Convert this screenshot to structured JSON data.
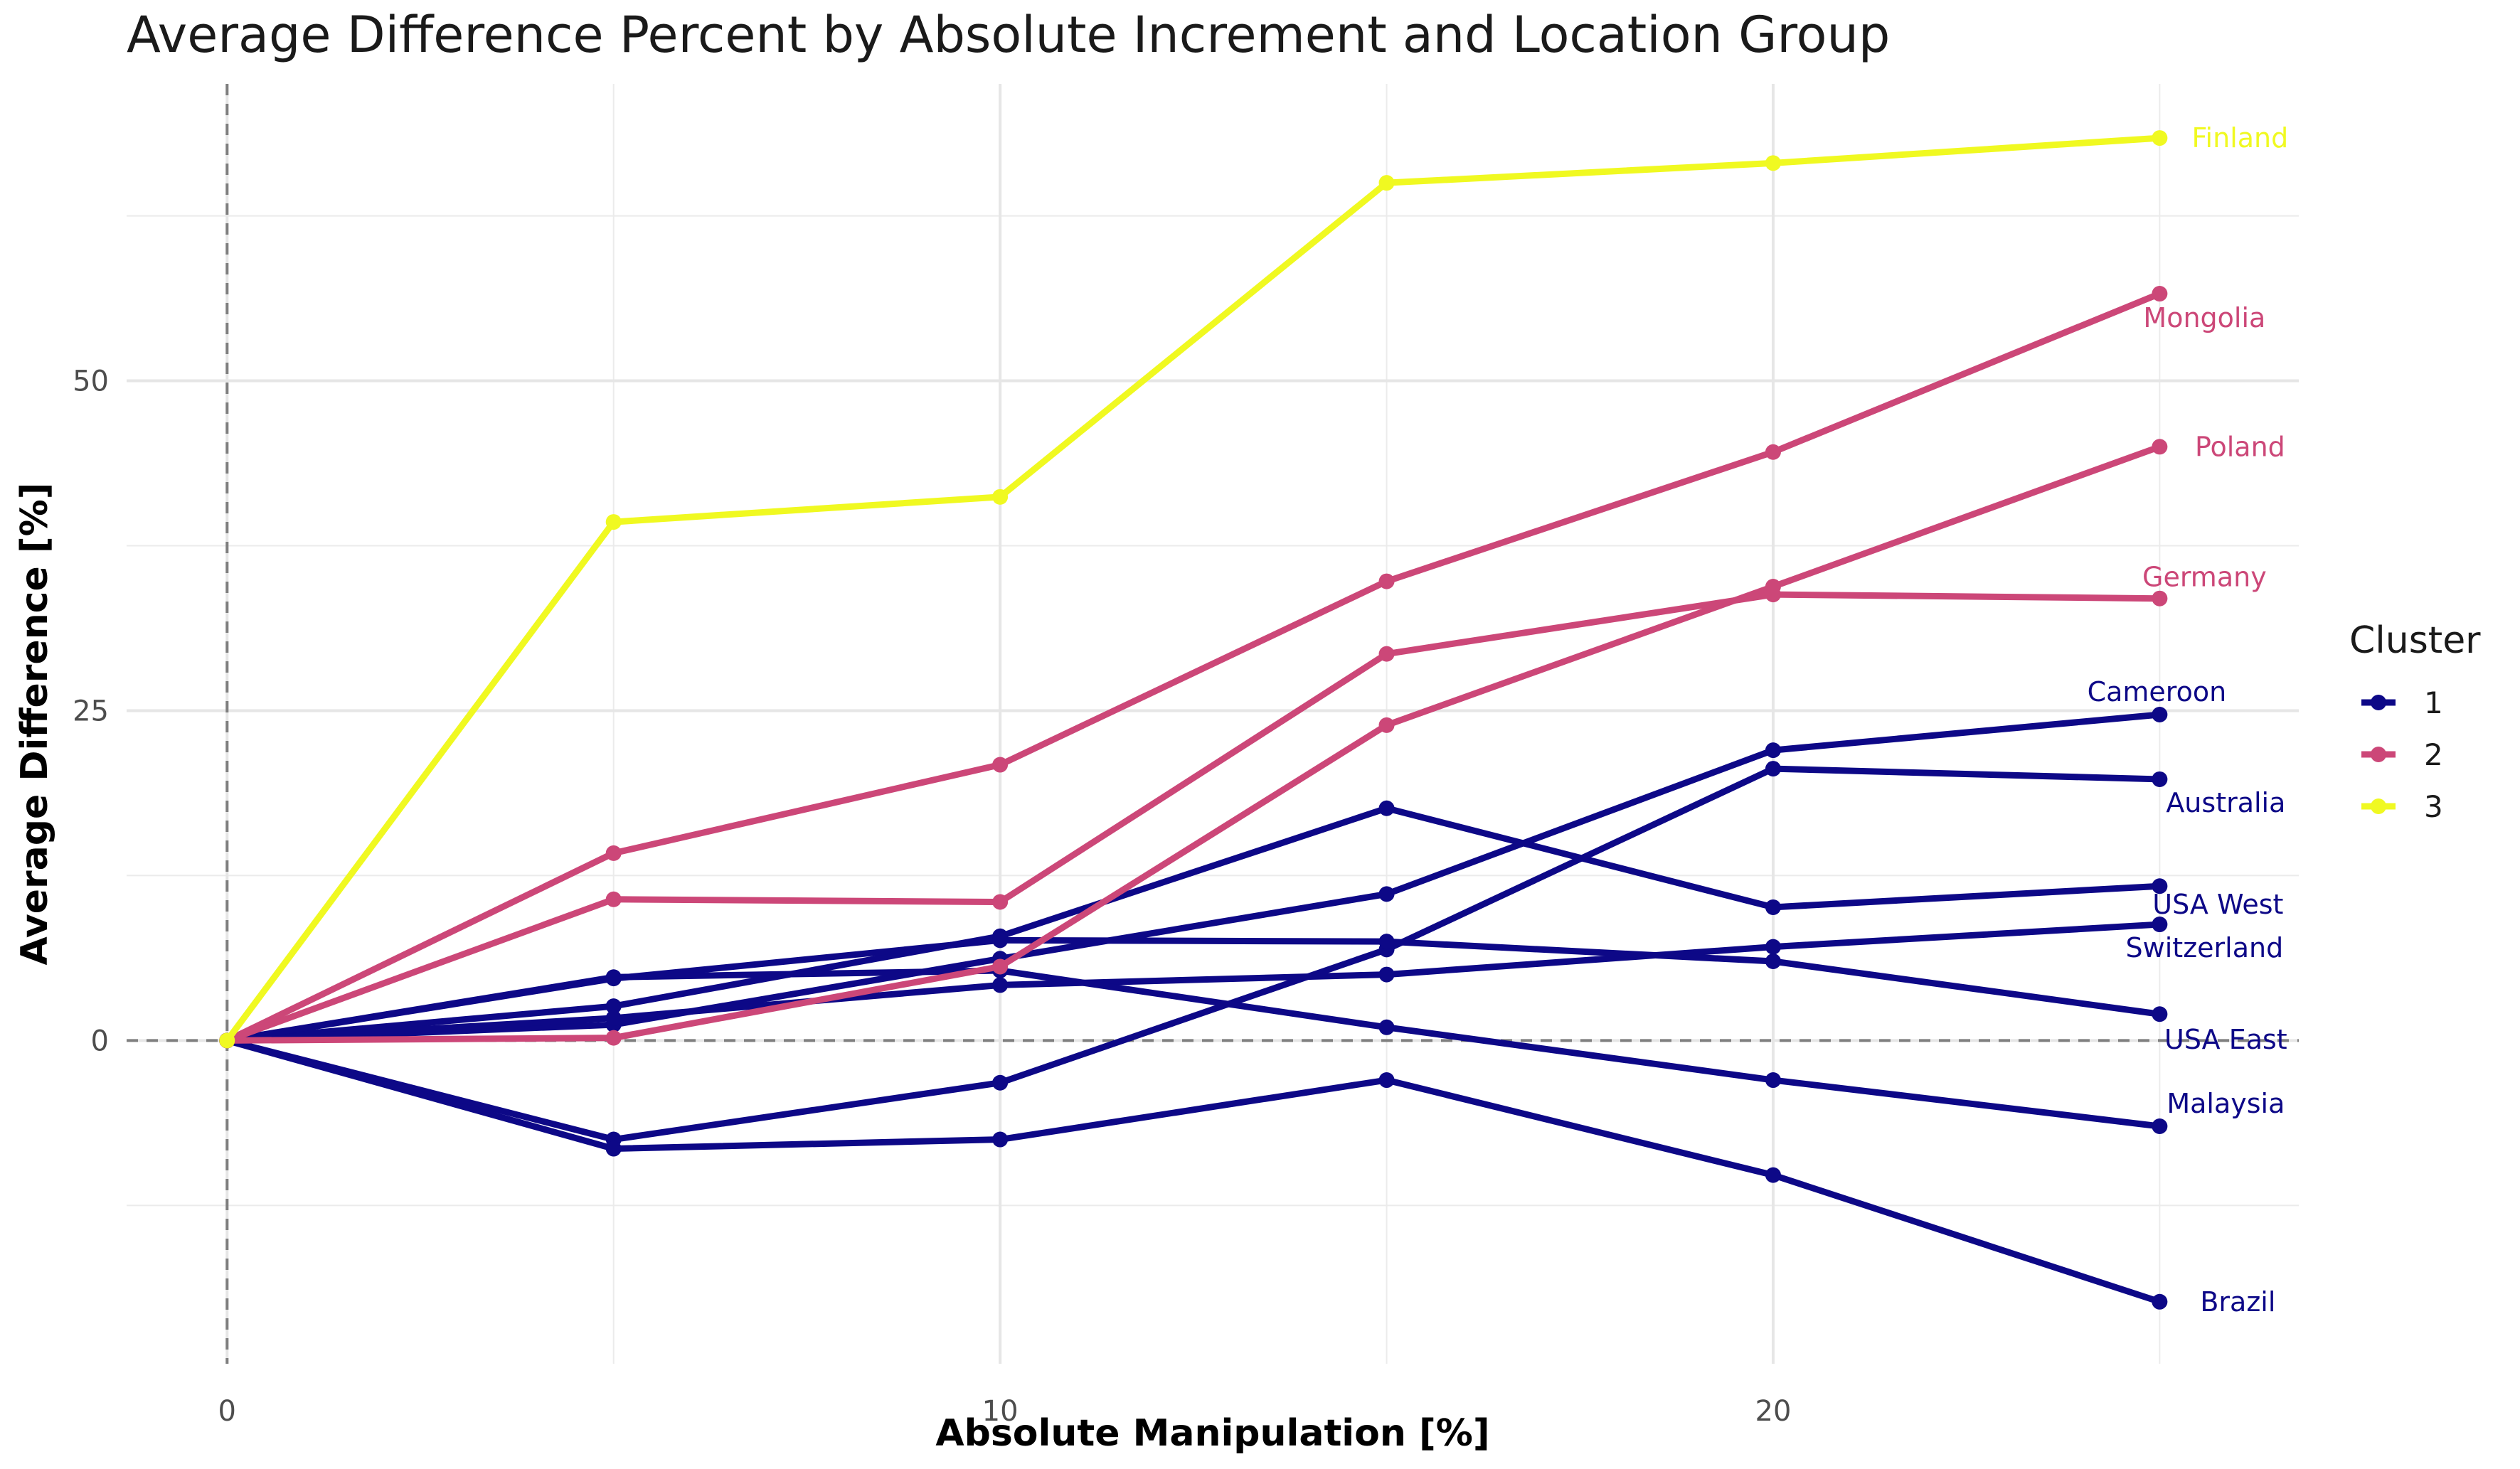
{
  "chart_data": {
    "type": "line",
    "title": "Average Difference Percent by Absolute Increment and Location Group",
    "xlabel": "Absolute Manipulation [%]",
    "ylabel": "Average Difference [%]",
    "x": [
      0,
      5,
      10,
      15,
      20,
      25
    ],
    "xlim": [
      -1.3,
      26.8
    ],
    "ylim": [
      -24.5,
      72.5
    ],
    "xticks": [
      0,
      10,
      20
    ],
    "yticks": [
      0,
      25,
      50
    ],
    "grid": true,
    "reference_lines": {
      "x": 0,
      "y": 0
    },
    "legend": {
      "title": "Cluster",
      "position": "right",
      "entries": [
        {
          "label": "1",
          "color": "#0d0887"
        },
        {
          "label": "2",
          "color": "#cc4778"
        },
        {
          "label": "3",
          "color": "#f0f921"
        }
      ]
    },
    "series": [
      {
        "name": "Finland",
        "cluster": "3",
        "color": "#f0f921",
        "values": [
          0,
          39.3,
          41.2,
          65.0,
          66.5,
          68.4
        ]
      },
      {
        "name": "Mongolia",
        "cluster": "2",
        "color": "#cc4778",
        "values": [
          0,
          14.2,
          20.9,
          34.8,
          44.6,
          56.6
        ]
      },
      {
        "name": "Poland",
        "cluster": "2",
        "color": "#cc4778",
        "values": [
          0,
          0.2,
          5.6,
          23.9,
          34.4,
          45.0
        ]
      },
      {
        "name": "Germany",
        "cluster": "2",
        "color": "#cc4778",
        "values": [
          0,
          10.7,
          10.5,
          29.3,
          33.8,
          33.5
        ]
      },
      {
        "name": "Cameroon",
        "cluster": "1",
        "color": "#0d0887",
        "values": [
          0,
          1.2,
          6.2,
          11.1,
          22.0,
          24.7
        ]
      },
      {
        "name": "Australia",
        "cluster": "1",
        "color": "#0d0887",
        "values": [
          0,
          -7.5,
          -3.2,
          6.9,
          20.6,
          19.8
        ]
      },
      {
        "name": "USA West",
        "cluster": "1",
        "color": "#0d0887",
        "values": [
          0,
          2.6,
          7.9,
          17.6,
          10.1,
          11.7
        ]
      },
      {
        "name": "Switzerland",
        "cluster": "1",
        "color": "#0d0887",
        "values": [
          0,
          1.7,
          4.2,
          5.0,
          7.1,
          8.8
        ]
      },
      {
        "name": "USA East",
        "cluster": "1",
        "color": "#0d0887",
        "values": [
          0,
          4.7,
          7.6,
          7.5,
          6.0,
          2.0
        ]
      },
      {
        "name": "Malaysia",
        "cluster": "1",
        "color": "#0d0887",
        "values": [
          0,
          4.8,
          5.3,
          1.0,
          -3.0,
          -6.5
        ]
      },
      {
        "name": "Brazil",
        "cluster": "1",
        "color": "#0d0887",
        "values": [
          0,
          -8.2,
          -7.5,
          -3.0,
          -10.2,
          -19.8
        ]
      }
    ],
    "end_labels": [
      "Finland",
      "Mongolia",
      "Poland",
      "Germany",
      "Cameroon",
      "Australia",
      "USA West",
      "Switzerland",
      "USA East",
      "Malaysia",
      "Brazil"
    ]
  }
}
